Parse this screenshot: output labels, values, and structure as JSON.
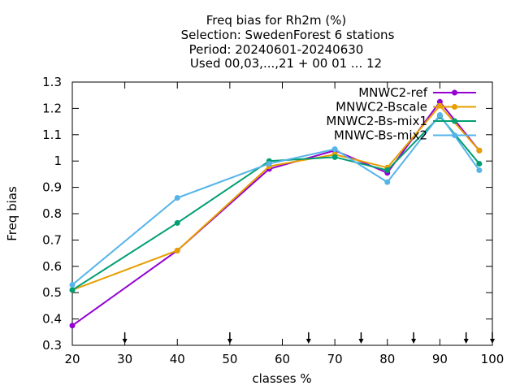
{
  "chart_data": {
    "type": "line",
    "title_lines": [
      "Freq bias  for Rh2m (%)",
      "Selection: SwedenForest      6 stations",
      "Period: 20240601-20240630",
      "Used 00,03,...,21 + 00 01 ... 12"
    ],
    "xlabel": "classes %",
    "ylabel": "Freq bias",
    "xlim": [
      20,
      100
    ],
    "ylim": [
      0.3,
      1.3
    ],
    "xticks": [
      20,
      30,
      40,
      50,
      60,
      70,
      80,
      90,
      100
    ],
    "yticks": [
      0.3,
      0.4,
      0.5,
      0.6,
      0.7,
      0.8,
      0.9,
      1,
      1.1,
      1.2,
      1.3
    ],
    "ytick_labels": [
      "0.3",
      "0.4",
      "0.5",
      "0.6",
      "0.7",
      "0.8",
      "0.9",
      "1",
      "1.1",
      "1.2",
      "1.3"
    ],
    "class_limit_arrows": [
      30,
      50,
      65,
      75,
      85,
      95,
      100
    ],
    "grid": false,
    "legend_position": "top-right",
    "series": [
      {
        "name": "MNWC2-ref",
        "color": "#9400d3",
        "x": [
          20,
          40,
          57.5,
          70,
          80,
          90,
          97.5
        ],
        "values": [
          0.375,
          0.66,
          0.97,
          1.04,
          0.955,
          1.225,
          1.04
        ]
      },
      {
        "name": "MNWC2-Bscale",
        "color": "#e69f00",
        "x": [
          20,
          40,
          57.5,
          70,
          80,
          90,
          97.5
        ],
        "values": [
          0.51,
          0.66,
          0.98,
          1.025,
          0.975,
          1.21,
          1.04
        ]
      },
      {
        "name": "MNWC2-Bs-mix1",
        "color": "#009e73",
        "x": [
          20,
          40,
          57.5,
          70,
          80,
          90,
          97.5
        ],
        "values": [
          0.51,
          0.765,
          1.0,
          1.015,
          0.965,
          1.17,
          0.99
        ]
      },
      {
        "name": "MNWC-Bs-mix2",
        "color": "#56b4e9",
        "x": [
          20,
          40,
          57.5,
          70,
          80,
          90,
          97.5
        ],
        "values": [
          0.53,
          0.86,
          0.99,
          1.045,
          0.92,
          1.175,
          0.965
        ]
      }
    ]
  }
}
